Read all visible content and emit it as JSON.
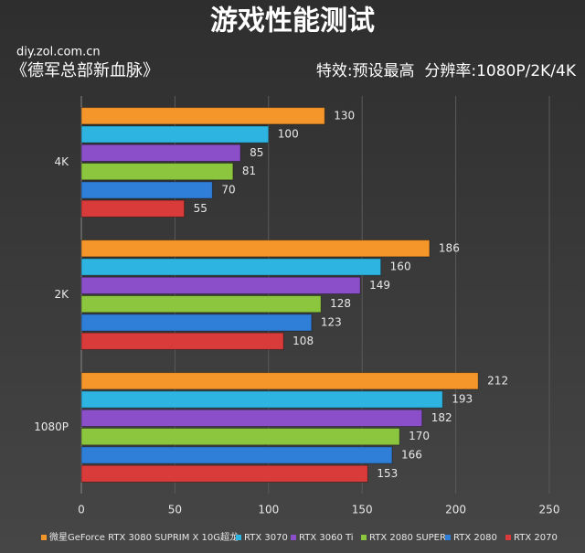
{
  "chart_data": {
    "type": "hbar",
    "title": "游戏性能测试",
    "source": "diy.zol.com.cn",
    "subtitle": "《德军总部新血脉》",
    "note": "特效:预设最高  分辨率:1080P/2K/4K",
    "categories": [
      "4K",
      "2K",
      "1080P"
    ],
    "series": [
      {
        "name": "微星GeForce RTX 3080 SUPRIM X 10G超龙",
        "color": "#f5962a",
        "values": [
          130,
          186,
          212
        ]
      },
      {
        "name": "RTX 3070",
        "color": "#2eb4e0",
        "values": [
          100,
          160,
          193
        ]
      },
      {
        "name": "RTX 3060 Ti",
        "color": "#8a4fc9",
        "values": [
          85,
          149,
          182
        ]
      },
      {
        "name": "RTX 2080 SUPER",
        "color": "#8cc63e",
        "values": [
          81,
          128,
          170
        ]
      },
      {
        "name": "RTX 2080",
        "color": "#2f7ed8",
        "values": [
          70,
          123,
          166
        ]
      },
      {
        "name": "RTX 2070",
        "color": "#d93a3a",
        "values": [
          55,
          108,
          153
        ]
      }
    ],
    "xlim": [
      0,
      250
    ],
    "xticks": [
      0,
      50,
      100,
      150,
      200,
      250
    ],
    "grid": true,
    "legend": "bottom"
  }
}
